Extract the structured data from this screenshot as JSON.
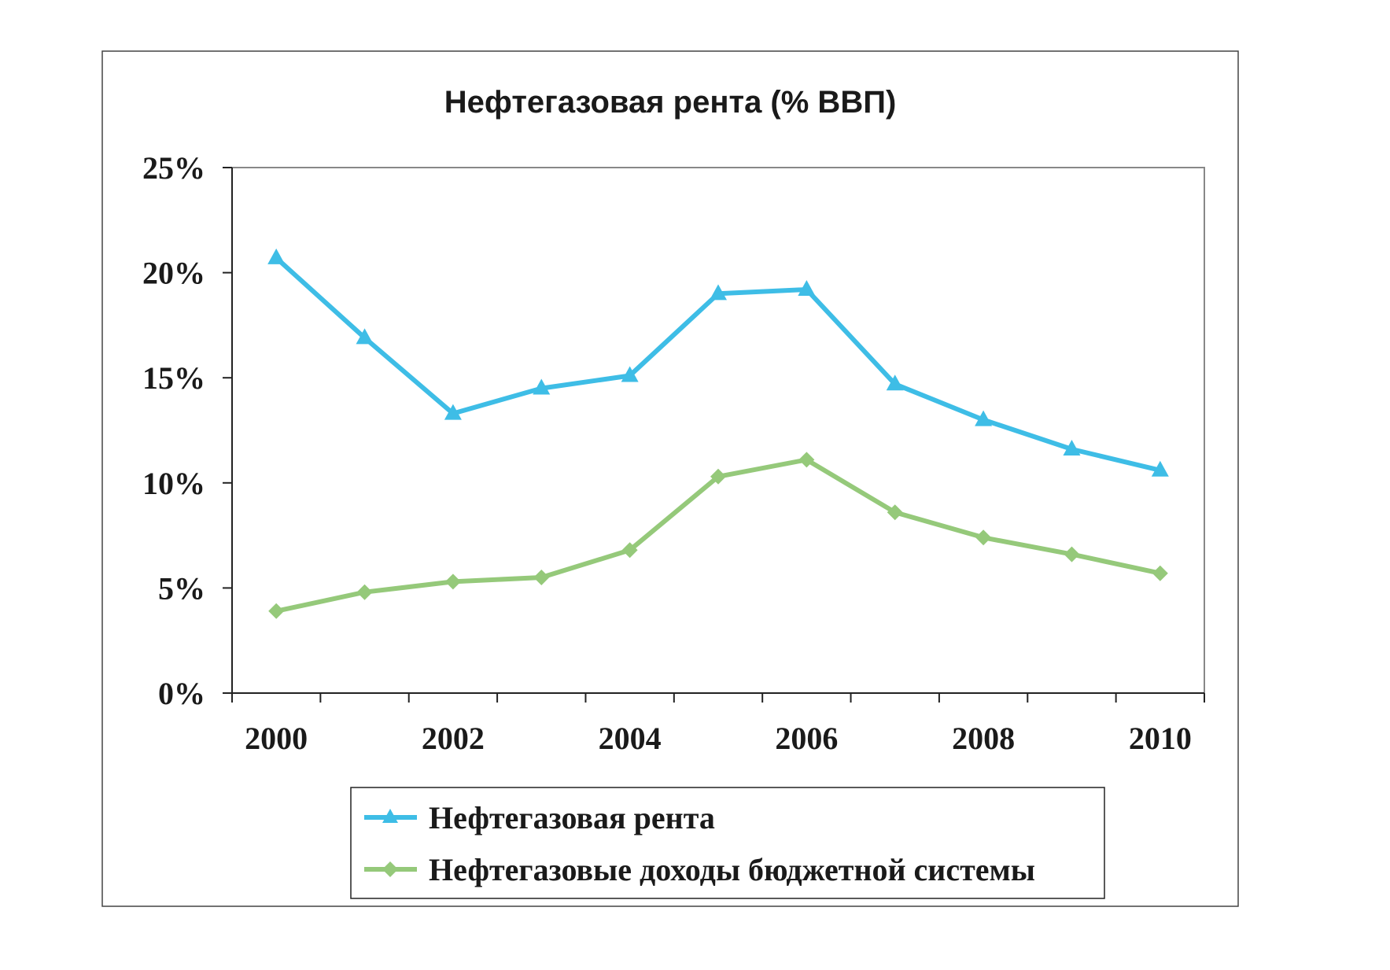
{
  "chart_data": {
    "type": "line",
    "title": "Нефтегазовая рента (% ВВП)",
    "xlabel": "",
    "ylabel": "",
    "x": [
      2000,
      2001,
      2002,
      2003,
      2004,
      2005,
      2006,
      2007,
      2008,
      2009,
      2010
    ],
    "x_tick_labels": [
      "2000",
      "2002",
      "2004",
      "2006",
      "2008",
      "2010"
    ],
    "y_tick_labels": [
      "0%",
      "5%",
      "10%",
      "15%",
      "20%",
      "25%"
    ],
    "ylim": [
      0,
      25
    ],
    "grid": false,
    "legend_position": "bottom",
    "series": [
      {
        "name": "Нефтегазовая рента",
        "color": "#3ebde6",
        "marker": "triangle",
        "values": [
          20.7,
          16.9,
          13.3,
          14.5,
          15.1,
          19.0,
          19.2,
          14.7,
          13.0,
          11.6,
          10.6
        ]
      },
      {
        "name": "Нефтегазовые доходы бюджетной системы",
        "color": "#95c97a",
        "marker": "diamond",
        "values": [
          3.9,
          4.8,
          5.3,
          5.5,
          6.8,
          10.3,
          11.1,
          8.6,
          7.4,
          6.6,
          5.7
        ]
      }
    ]
  }
}
